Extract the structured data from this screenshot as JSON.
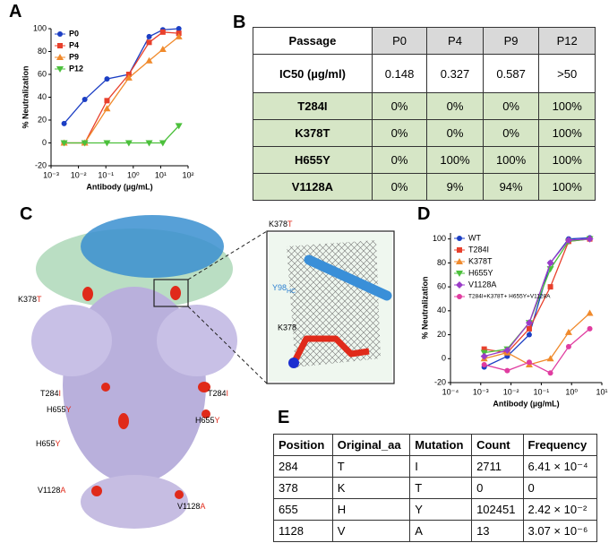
{
  "panel_labels": [
    "A",
    "B",
    "C",
    "D",
    "E"
  ],
  "chart_data": [
    {
      "type": "line",
      "x_label": "Antibody (µg/mL)",
      "y_label": "% Neutralization",
      "log_x": true,
      "legend": "upper left",
      "x": [
        0.003,
        0.017,
        0.11,
        0.69,
        3.8,
        12,
        46
      ],
      "xlim": [
        0.001,
        100
      ],
      "xticks": [
        {
          "value": 0.001,
          "label": "10⁻³"
        },
        {
          "value": 0.01,
          "label": "10⁻²"
        },
        {
          "value": 0.1,
          "label": "10⁻¹"
        },
        {
          "value": 1,
          "label": "10⁰"
        },
        {
          "value": 10,
          "label": "10¹"
        },
        {
          "value": 100,
          "label": "10²"
        }
      ],
      "ylim": [
        -20,
        100
      ],
      "yticks": [
        -20,
        0,
        20,
        40,
        60,
        80,
        100
      ],
      "series": [
        {
          "name": "P0",
          "color": "#1c3fc4",
          "marker": "circle",
          "values": [
            17,
            38,
            56,
            60,
            93,
            99,
            100
          ]
        },
        {
          "name": "P4",
          "color": "#e8402c",
          "marker": "square",
          "values": [
            0,
            0,
            37,
            60,
            88,
            97,
            96
          ]
        },
        {
          "name": "P9",
          "color": "#f08a2c",
          "marker": "triangle",
          "values": [
            0,
            0,
            30,
            57,
            72,
            82,
            93
          ]
        },
        {
          "name": "P12",
          "color": "#4cc03c",
          "marker": "triangle-down",
          "values": [
            0,
            0,
            0,
            0,
            0,
            0,
            15
          ]
        }
      ]
    },
    {
      "type": "line",
      "x_label": "Antibody (µg/mL)",
      "y_label": "% Neutralization",
      "log_x": true,
      "legend": "upper left",
      "x": [
        0.0013,
        0.0075,
        0.04,
        0.2,
        0.8,
        4
      ],
      "xlim": [
        0.0001,
        10
      ],
      "xticks": [
        {
          "value": 0.0001,
          "label": "10⁻⁴"
        },
        {
          "value": 0.001,
          "label": "10⁻³"
        },
        {
          "value": 0.01,
          "label": "10⁻²"
        },
        {
          "value": 0.1,
          "label": "10⁻¹"
        },
        {
          "value": 1,
          "label": "10⁰"
        },
        {
          "value": 10,
          "label": "10¹"
        }
      ],
      "ylim": [
        -20,
        105
      ],
      "yticks": [
        -20,
        0,
        20,
        40,
        60,
        80,
        100
      ],
      "series": [
        {
          "name": "WT",
          "color": "#1c3fc4",
          "marker": "circle",
          "values": [
            -7,
            2,
            20,
            80,
            100,
            101
          ]
        },
        {
          "name": "T284I",
          "color": "#e8402c",
          "marker": "square",
          "values": [
            8,
            5,
            25,
            60,
            98,
            100
          ]
        },
        {
          "name": "K378T",
          "color": "#f08a2c",
          "marker": "triangle",
          "values": [
            0,
            5,
            -5,
            0,
            22,
            38
          ]
        },
        {
          "name": "H655Y",
          "color": "#4cc03c",
          "marker": "triangle-down",
          "values": [
            5,
            8,
            30,
            75,
            98,
            100
          ]
        },
        {
          "name": "V1128A",
          "color": "#9b3cc8",
          "marker": "diamond",
          "values": [
            2,
            7,
            30,
            80,
            99,
            100
          ]
        },
        {
          "name": "T284I+K378T+ H655Y+V1128A",
          "color": "#e03ca0",
          "marker": "circle",
          "values": [
            -5,
            -10,
            -3,
            -12,
            10,
            25
          ]
        }
      ]
    }
  ],
  "table_b": {
    "header": [
      "Passage",
      "P0",
      "P4",
      "P9",
      "P12"
    ],
    "rows": [
      [
        "IC50 (µg/ml)",
        "0.148",
        "0.327",
        "0.587",
        ">50"
      ],
      [
        "T284I",
        "0%",
        "0%",
        "0%",
        "100%"
      ],
      [
        "K378T",
        "0%",
        "0%",
        "0%",
        "100%"
      ],
      [
        "H655Y",
        "0%",
        "100%",
        "100%",
        "100%"
      ],
      [
        "V1128A",
        "0%",
        "9%",
        "94%",
        "100%"
      ]
    ]
  },
  "structure": {
    "labels": [
      {
        "text": "K378",
        "mut": "T"
      },
      {
        "text": "T284",
        "mut": "I"
      },
      {
        "text": "T284",
        "mut": "I"
      },
      {
        "text": "H655",
        "mut": "Y"
      },
      {
        "text": "H655",
        "mut": "Y"
      },
      {
        "text": "H655",
        "mut": "Y"
      },
      {
        "text": "V1128",
        "mut": "A"
      },
      {
        "text": "V1128",
        "mut": "A"
      }
    ],
    "inset": {
      "top_label": {
        "text": "K378",
        "mut": "T"
      },
      "chain_label": {
        "text": "Y98",
        "sub": "HC"
      },
      "residue_label": "K378"
    }
  },
  "table_e": {
    "header": [
      "Position",
      "Original_aa",
      "Mutation",
      "Count",
      "Frequency"
    ],
    "rows": [
      [
        "284",
        "T",
        "I",
        "2711",
        "6.41 × 10⁻⁴"
      ],
      [
        "378",
        "K",
        "T",
        "0",
        "0"
      ],
      [
        "655",
        "H",
        "Y",
        "102451",
        "2.42 × 10⁻²"
      ],
      [
        "1128",
        "V",
        "A",
        "13",
        "3.07 × 10⁻⁶"
      ]
    ]
  }
}
